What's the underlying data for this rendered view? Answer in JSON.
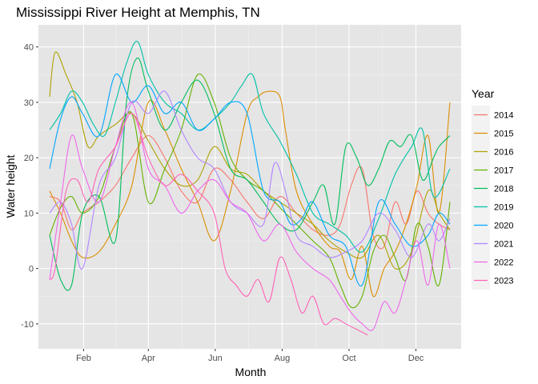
{
  "chart_data": {
    "type": "line",
    "title": "Mississippi River Height at Memphis, TN",
    "xlabel": "Month",
    "ylabel": "Water height",
    "xlim": [
      0,
      365
    ],
    "ylim": [
      -14.5,
      44
    ],
    "x_ticks": [
      {
        "label": "Feb",
        "value": 31
      },
      {
        "label": "Apr",
        "value": 90
      },
      {
        "label": "Jun",
        "value": 151
      },
      {
        "label": "Aug",
        "value": 212
      },
      {
        "label": "Oct",
        "value": 273
      },
      {
        "label": "Dec",
        "value": 334
      }
    ],
    "y_ticks": [
      -10,
      0,
      10,
      20,
      30,
      40
    ],
    "grid": true,
    "background": "#e5e5e5",
    "legend": {
      "title": "Year",
      "position": "right"
    },
    "series": [
      {
        "name": "2014",
        "color": "#F8766D",
        "x": [
          0,
          10,
          20,
          30,
          45,
          60,
          75,
          90,
          105,
          120,
          135,
          150,
          165,
          180,
          195,
          210,
          225,
          240,
          255,
          265,
          275,
          285,
          295,
          305,
          315,
          325,
          335,
          345,
          355,
          365
        ],
        "y": [
          13,
          12,
          7,
          10,
          12,
          15,
          20,
          24,
          20,
          14,
          12,
          18,
          16,
          12,
          9,
          13,
          10,
          7,
          6,
          8,
          15,
          18,
          6,
          4,
          12,
          8,
          14,
          10,
          8,
          7
        ]
      },
      {
        "name": "2015",
        "color": "#DB8E00",
        "x": [
          0,
          10,
          20,
          30,
          45,
          60,
          75,
          90,
          105,
          120,
          135,
          150,
          165,
          180,
          190,
          200,
          210,
          215,
          225,
          240,
          255,
          265,
          275,
          285,
          295,
          305,
          315,
          325,
          335,
          345,
          355,
          365
        ],
        "y": [
          14,
          10,
          5,
          2,
          3,
          8,
          15,
          30,
          25,
          18,
          12,
          5,
          14,
          28,
          31,
          32,
          31,
          25,
          14,
          8,
          4,
          3,
          -2,
          4,
          -5,
          0,
          3,
          8,
          15,
          24,
          10,
          30
        ]
      },
      {
        "name": "2016",
        "color": "#AEA200",
        "x": [
          0,
          5,
          15,
          25,
          35,
          45,
          60,
          75,
          90,
          105,
          120,
          135,
          150,
          165,
          180,
          195,
          210,
          225,
          240,
          255,
          270,
          285,
          300,
          315,
          330,
          345,
          355,
          365
        ],
        "y": [
          31,
          39,
          35,
          30,
          22,
          24,
          26,
          28,
          23,
          18,
          15,
          16,
          22,
          18,
          17,
          14,
          12,
          10,
          8,
          5,
          3,
          2,
          6,
          0,
          3,
          14,
          10,
          7
        ]
      },
      {
        "name": "2017",
        "color": "#64B200",
        "x": [
          0,
          10,
          20,
          30,
          45,
          60,
          75,
          90,
          105,
          120,
          135,
          150,
          165,
          180,
          195,
          210,
          225,
          240,
          255,
          265,
          275,
          285,
          295,
          305,
          315,
          325,
          335,
          345,
          355,
          365
        ],
        "y": [
          6,
          11,
          13,
          10,
          13,
          22,
          28,
          12,
          18,
          25,
          35,
          30,
          20,
          16,
          14,
          11,
          8,
          5,
          2,
          -3,
          -7,
          -5,
          3,
          6,
          2,
          -2,
          8,
          4,
          -3,
          12
        ]
      },
      {
        "name": "2018",
        "color": "#00BD5C",
        "x": [
          0,
          10,
          20,
          30,
          45,
          60,
          70,
          80,
          90,
          105,
          120,
          135,
          150,
          165,
          180,
          195,
          210,
          225,
          240,
          250,
          260,
          270,
          280,
          290,
          300,
          310,
          320,
          330,
          340,
          350,
          355,
          365
        ],
        "y": [
          6,
          -2,
          -3,
          10,
          13,
          5,
          30,
          38,
          32,
          25,
          30,
          34,
          28,
          18,
          16,
          12,
          8,
          7,
          12,
          15,
          8,
          22,
          20,
          15,
          18,
          23,
          22,
          24,
          16,
          20,
          22,
          24
        ]
      },
      {
        "name": "2019",
        "color": "#00C1A7",
        "x": [
          0,
          10,
          20,
          30,
          40,
          50,
          60,
          70,
          80,
          90,
          105,
          120,
          135,
          150,
          165,
          175,
          185,
          195,
          210,
          225,
          240,
          255,
          270,
          285,
          300,
          315,
          330,
          340,
          350,
          365
        ],
        "y": [
          25,
          28,
          32,
          30,
          26,
          24,
          30,
          37,
          41,
          35,
          30,
          28,
          25,
          27,
          30,
          33,
          35,
          28,
          23,
          17,
          10,
          8,
          6,
          3,
          9,
          17,
          22,
          25,
          13,
          18
        ]
      },
      {
        "name": "2020",
        "color": "#00A6FF",
        "x": [
          0,
          10,
          20,
          30,
          45,
          60,
          75,
          90,
          105,
          120,
          135,
          150,
          165,
          180,
          195,
          210,
          220,
          230,
          240,
          255,
          270,
          285,
          300,
          315,
          330,
          345,
          355,
          365
        ],
        "y": [
          18,
          27,
          31,
          28,
          24,
          35,
          30,
          33,
          28,
          30,
          25,
          27,
          30,
          28,
          14,
          12,
          8,
          9,
          12,
          6,
          4,
          -3,
          12,
          8,
          4,
          6,
          10,
          8
        ]
      },
      {
        "name": "2021",
        "color": "#B385FF",
        "x": [
          0,
          10,
          20,
          30,
          45,
          60,
          75,
          90,
          105,
          120,
          135,
          150,
          165,
          180,
          195,
          205,
          215,
          225,
          240,
          255,
          270,
          285,
          300,
          315,
          330,
          345,
          355,
          365
        ],
        "y": [
          10,
          12,
          8,
          0,
          15,
          20,
          30,
          28,
          32,
          25,
          20,
          18,
          12,
          10,
          8,
          19,
          14,
          6,
          4,
          2,
          3,
          5,
          10,
          7,
          2,
          8,
          5,
          9
        ]
      },
      {
        "name": "2022",
        "color": "#EF67EB",
        "x": [
          0,
          10,
          20,
          30,
          45,
          60,
          75,
          90,
          105,
          120,
          135,
          150,
          165,
          180,
          195,
          210,
          225,
          240,
          255,
          265,
          275,
          285,
          295,
          305,
          315,
          325,
          335,
          345,
          355,
          365
        ],
        "y": [
          -2,
          12,
          24,
          18,
          12,
          22,
          30,
          18,
          15,
          10,
          14,
          16,
          12,
          10,
          5,
          8,
          3,
          0,
          -2,
          -5,
          -8,
          -10,
          -11,
          -6,
          -8,
          -2,
          5,
          -3,
          8,
          0
        ]
      },
      {
        "name": "2023",
        "color": "#FF63B6",
        "x": [
          0,
          5,
          15,
          25,
          35,
          45,
          60,
          75,
          90,
          105,
          120,
          135,
          150,
          160,
          170,
          180,
          190,
          200,
          210,
          220,
          230,
          240,
          250,
          260,
          270,
          280,
          290
        ],
        "y": [
          -2,
          0,
          14,
          16,
          12,
          18,
          22,
          28,
          20,
          15,
          17,
          14,
          10,
          0,
          -3,
          -5,
          -2,
          -6,
          2,
          -2,
          -8,
          -5,
          -10,
          -9,
          -10,
          -11,
          -12
        ]
      }
    ]
  }
}
